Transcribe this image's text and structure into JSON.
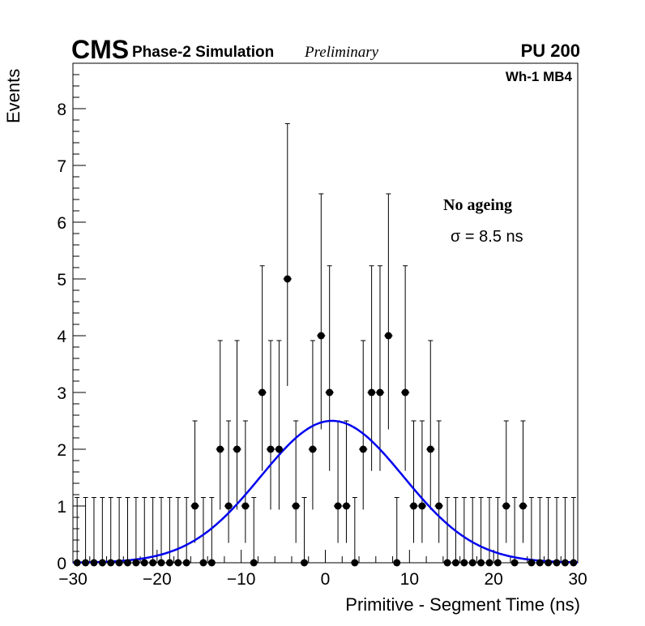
{
  "header": {
    "experiment": "CMS",
    "subtitle": "Phase-2 Simulation",
    "status": "Preliminary",
    "pileup": "PU 200"
  },
  "chart_data": {
    "type": "scatter",
    "title": "",
    "xlabel": "Primitive - Segment Time (ns)",
    "ylabel": "Events",
    "xlim": [
      -30,
      30
    ],
    "ylim": [
      0,
      8.8
    ],
    "xticks": [
      "−30",
      "−20",
      "−10",
      "0",
      "10",
      "20",
      "30"
    ],
    "yticks": [
      "0",
      "1",
      "2",
      "3",
      "4",
      "5",
      "6",
      "7",
      "8"
    ],
    "region_label": "Wh-1 MB4",
    "annotation": "No ageing",
    "fit_label": "σ = 8.5 ns",
    "series": [
      {
        "kind": "histogram-points",
        "x": [
          -29.5,
          -28.5,
          -27.5,
          -26.5,
          -25.5,
          -24.5,
          -23.5,
          -22.5,
          -21.5,
          -20.5,
          -19.5,
          -18.5,
          -17.5,
          -16.5,
          -15.5,
          -14.5,
          -13.5,
          -12.5,
          -11.5,
          -10.5,
          -9.5,
          -8.5,
          -7.5,
          -6.5,
          -5.5,
          -4.5,
          -3.5,
          -2.5,
          -1.5,
          -0.5,
          0.5,
          1.5,
          2.5,
          3.5,
          4.5,
          5.5,
          6.5,
          7.5,
          8.5,
          9.5,
          10.5,
          11.5,
          12.5,
          13.5,
          14.5,
          15.5,
          16.5,
          17.5,
          18.5,
          19.5,
          20.5,
          21.5,
          22.5,
          23.5,
          24.5,
          25.5,
          26.5,
          27.5,
          28.5,
          29.5
        ],
        "values": [
          0,
          0,
          0,
          0,
          0,
          0,
          0,
          0,
          0,
          0,
          0,
          0,
          0,
          0,
          1,
          0,
          0,
          2,
          1,
          2,
          1,
          0,
          3,
          2,
          2,
          5,
          1,
          0,
          2,
          4,
          3,
          1,
          1,
          0,
          2,
          3,
          3,
          4,
          0,
          3,
          1,
          1,
          2,
          1,
          0,
          0,
          0,
          0,
          0,
          0,
          0,
          1,
          0,
          1,
          0,
          0,
          0,
          0,
          0,
          0
        ],
        "error_upper_zero": 1.15
      },
      {
        "kind": "gaussian-fit",
        "amplitude": 2.5,
        "mean": 0.8,
        "sigma": 8.5,
        "color": "#0000ee"
      }
    ]
  }
}
